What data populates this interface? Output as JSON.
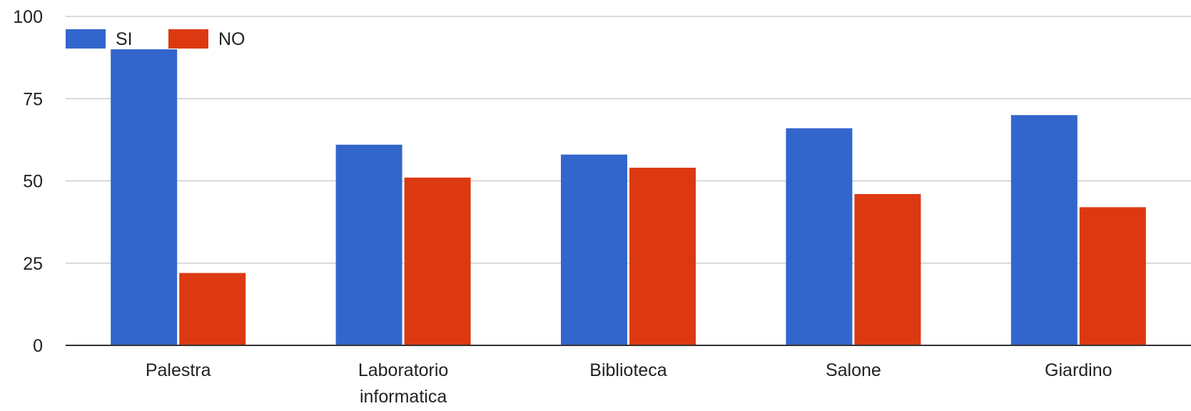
{
  "chart_data": {
    "type": "bar",
    "categories": [
      [
        "Palestra"
      ],
      [
        "Laboratorio",
        "informatica"
      ],
      [
        "Biblioteca"
      ],
      [
        "Salone"
      ],
      [
        "Giardino"
      ]
    ],
    "series": [
      {
        "name": "SI",
        "color": "#3366cc",
        "values": [
          90,
          61,
          58,
          66,
          70
        ]
      },
      {
        "name": "NO",
        "color": "#dc3912",
        "values": [
          22,
          51,
          54,
          46,
          42
        ]
      }
    ],
    "ylim": [
      0,
      100
    ],
    "yticks": [
      0,
      25,
      50,
      75,
      100
    ],
    "grid": true,
    "legend_position": "top-left",
    "title": "",
    "xlabel": "",
    "ylabel": ""
  }
}
